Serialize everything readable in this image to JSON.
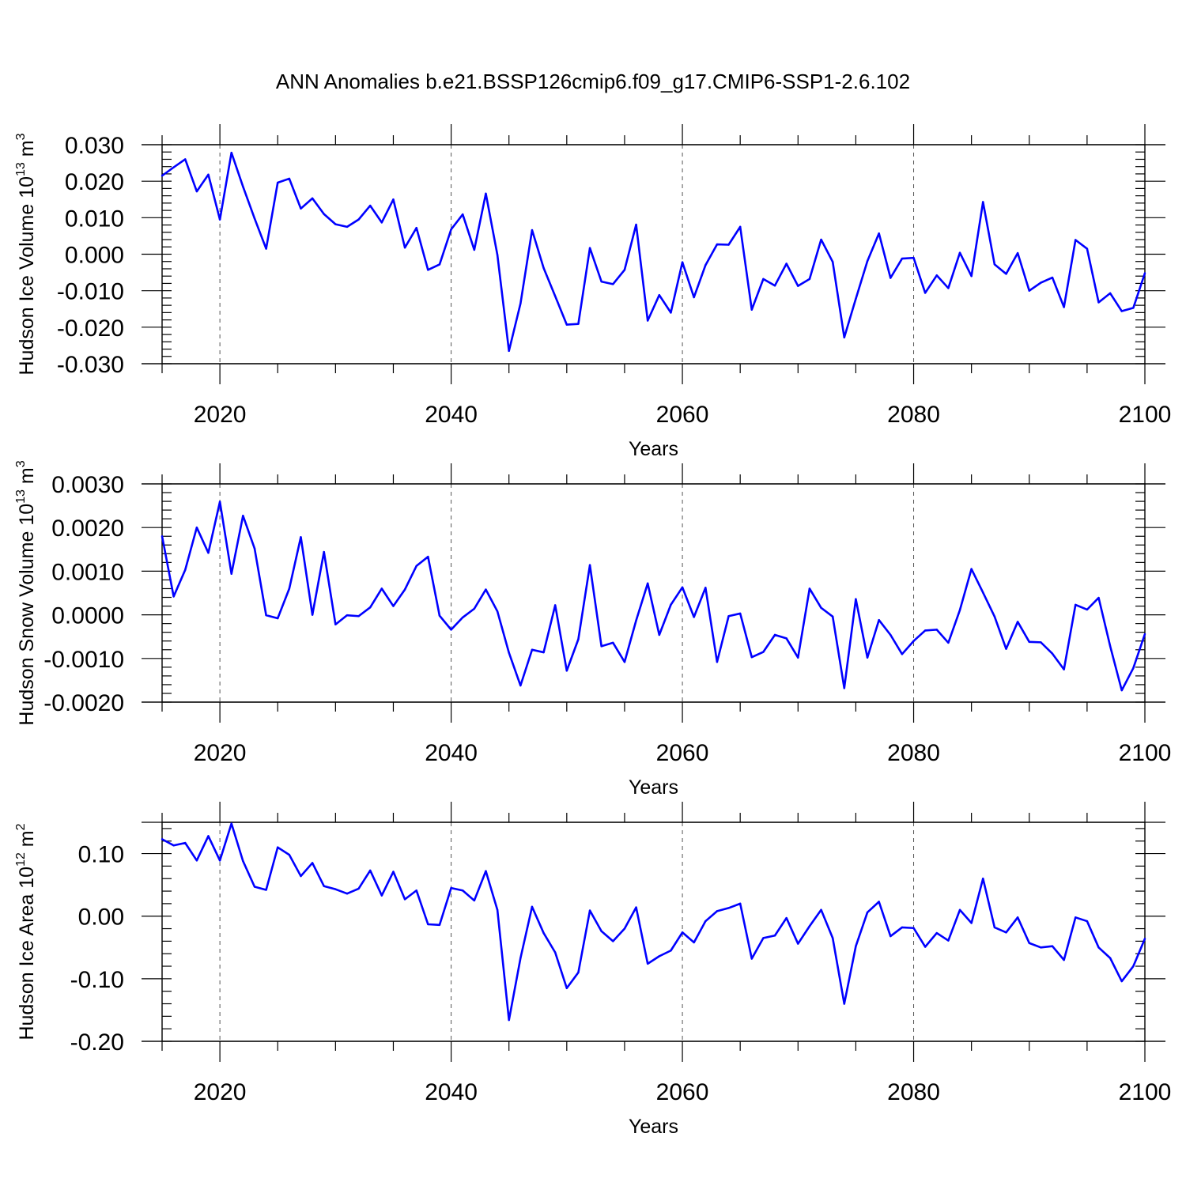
{
  "title": "ANN Anomalies b.e21.BSSP126cmip6.f09_g17.CMIP6-SSP1-2.6.102",
  "chart_data": [
    {
      "type": "line",
      "xlabel": "Years",
      "ylabel": "Hudson Ice Volume 10",
      "ylabel_sup": "13",
      "ylabel_unit": "m",
      "ylabel_unit_sup": "3",
      "xlim": [
        2015,
        2100
      ],
      "ylim": [
        -0.03,
        0.03
      ],
      "xticks": [
        2020,
        2040,
        2060,
        2080,
        2100
      ],
      "yticks": [
        -0.03,
        -0.02,
        -0.01,
        0.0,
        0.01,
        0.02,
        0.03
      ],
      "ytick_labels": [
        "-0.030",
        "-0.020",
        "-0.010",
        "0.000",
        "0.010",
        "0.020",
        "0.030"
      ],
      "x_start": 2015,
      "values": [
        0.0215,
        0.0238,
        0.026,
        0.0172,
        0.0218,
        0.0095,
        0.0278,
        0.0185,
        0.0098,
        0.0015,
        0.0196,
        0.0207,
        0.0125,
        0.0153,
        0.011,
        0.0082,
        0.0075,
        0.0095,
        0.0133,
        0.0087,
        0.015,
        0.0018,
        0.0072,
        -0.0043,
        -0.0028,
        0.0068,
        0.0109,
        0.0012,
        0.0166,
        -0.0002,
        -0.0265,
        -0.0135,
        0.0066,
        -0.0038,
        -0.0115,
        -0.0193,
        -0.0191,
        0.0017,
        -0.0075,
        -0.0082,
        -0.0043,
        0.0081,
        -0.0182,
        -0.0112,
        -0.016,
        -0.0022,
        -0.0118,
        -0.003,
        0.0027,
        0.0026,
        0.0075,
        -0.0152,
        -0.0068,
        -0.0086,
        -0.0026,
        -0.0087,
        -0.0068,
        0.004,
        -0.0021,
        -0.0228,
        -0.0122,
        -0.0019,
        0.0057,
        -0.0065,
        -0.0012,
        -0.001,
        -0.0106,
        -0.0058,
        -0.0093,
        0.0004,
        -0.006,
        0.0143,
        -0.0028,
        -0.0054,
        0.0003,
        -0.01,
        -0.0078,
        -0.0064,
        -0.0145,
        0.0039,
        0.0015,
        -0.0132,
        -0.0107,
        -0.0156,
        -0.0147,
        -0.0052
      ]
    },
    {
      "type": "line",
      "xlabel": "Years",
      "ylabel": "Hudson Snow Volume 10",
      "ylabel_sup": "13",
      "ylabel_unit": "m",
      "ylabel_unit_sup": "3",
      "xlim": [
        2015,
        2100
      ],
      "ylim": [
        -0.002,
        0.003
      ],
      "xticks": [
        2020,
        2040,
        2060,
        2080,
        2100
      ],
      "yticks": [
        -0.002,
        -0.001,
        0.0,
        0.001,
        0.002,
        0.003
      ],
      "ytick_labels": [
        "-0.0020",
        "-0.0010",
        "0.0000",
        "0.0010",
        "0.0020",
        "0.0030"
      ],
      "x_start": 2015,
      "values": [
        0.0018,
        0.00042,
        0.00103,
        0.002,
        0.00142,
        0.00259,
        0.00094,
        0.00227,
        0.00152,
        -1e-05,
        -8e-05,
        0.0006,
        0.00178,
        0.0,
        0.00144,
        -0.00022,
        -1e-05,
        -3e-05,
        0.00017,
        0.0006,
        0.0002,
        0.00058,
        0.00112,
        0.00133,
        -2e-05,
        -0.00034,
        -6e-05,
        0.00014,
        0.00058,
        8e-05,
        -0.00087,
        -0.00162,
        -0.0008,
        -0.00086,
        0.00022,
        -0.00128,
        -0.00056,
        0.00114,
        -0.00072,
        -0.00064,
        -0.00108,
        -0.00013,
        0.00072,
        -0.00046,
        0.00023,
        0.00063,
        -5e-05,
        0.00062,
        -0.00108,
        -3e-05,
        3e-05,
        -0.00097,
        -0.00085,
        -0.00046,
        -0.00054,
        -0.00098,
        0.0006,
        0.00016,
        -4e-05,
        -0.00168,
        0.00036,
        -0.00098,
        -0.00012,
        -0.00046,
        -0.0009,
        -0.0006,
        -0.00036,
        -0.00034,
        -0.00064,
        0.00011,
        0.00105,
        0.00051,
        -4e-05,
        -0.00078,
        -0.00016,
        -0.00062,
        -0.00063,
        -0.00089,
        -0.00125,
        0.00023,
        0.00012,
        0.00039,
        -0.00072,
        -0.00173,
        -0.00122,
        -0.00044
      ]
    },
    {
      "type": "line",
      "xlabel": "Years",
      "ylabel": "Hudson Ice Area 10",
      "ylabel_sup": "12",
      "ylabel_unit": "m",
      "ylabel_unit_sup": "2",
      "xlim": [
        2015,
        2100
      ],
      "ylim": [
        -0.2,
        0.15
      ],
      "xticks": [
        2020,
        2040,
        2060,
        2080,
        2100
      ],
      "yticks": [
        -0.2,
        -0.1,
        0.0,
        0.1
      ],
      "ytick_labels": [
        "-0.20",
        "-0.10",
        "0.00",
        "0.10"
      ],
      "x_start": 2015,
      "values": [
        0.123,
        0.113,
        0.117,
        0.089,
        0.128,
        0.089,
        0.148,
        0.088,
        0.047,
        0.042,
        0.11,
        0.098,
        0.064,
        0.085,
        0.048,
        0.043,
        0.036,
        0.044,
        0.073,
        0.033,
        0.071,
        0.027,
        0.041,
        -0.013,
        -0.014,
        0.045,
        0.041,
        0.025,
        0.072,
        0.01,
        -0.166,
        -0.067,
        0.015,
        -0.027,
        -0.058,
        -0.115,
        -0.09,
        0.009,
        -0.024,
        -0.04,
        -0.02,
        0.014,
        -0.076,
        -0.064,
        -0.055,
        -0.026,
        -0.042,
        -0.008,
        0.008,
        0.013,
        0.02,
        -0.068,
        -0.035,
        -0.031,
        -0.003,
        -0.044,
        -0.016,
        0.01,
        -0.035,
        -0.14,
        -0.048,
        0.006,
        0.023,
        -0.032,
        -0.018,
        -0.019,
        -0.049,
        -0.027,
        -0.039,
        0.01,
        -0.011,
        0.06,
        -0.018,
        -0.026,
        -0.002,
        -0.043,
        -0.05,
        -0.048,
        -0.07,
        -0.002,
        -0.008,
        -0.05,
        -0.067,
        -0.104,
        -0.08,
        -0.036
      ]
    }
  ]
}
